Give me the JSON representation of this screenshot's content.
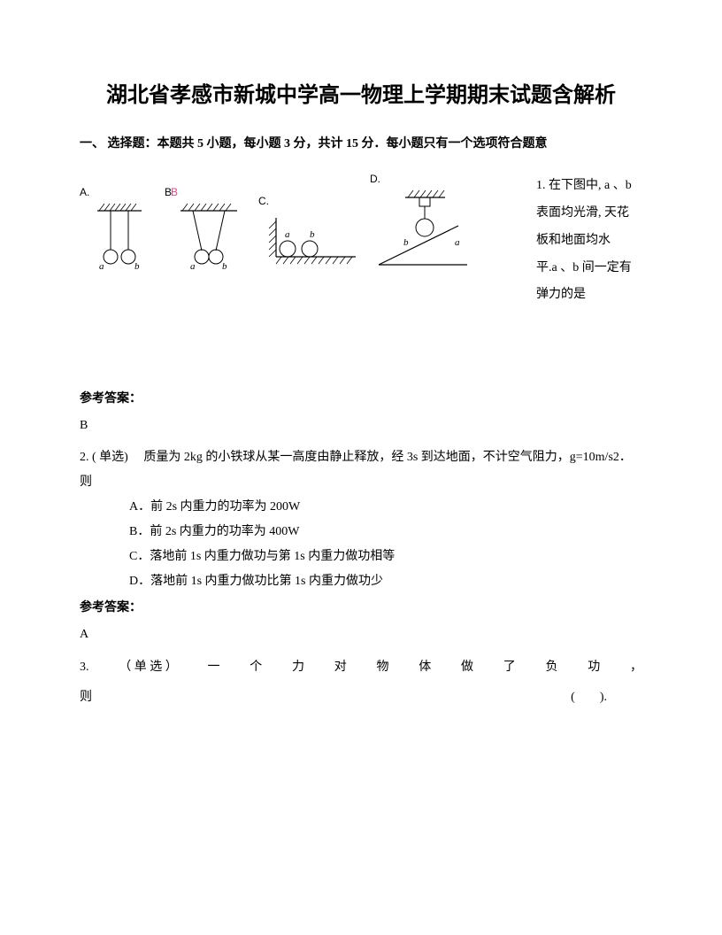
{
  "title": "湖北省孝感市新城中学高一物理上学期期末试题含解析",
  "section1": "一、 选择题：本题共 5 小题，每小题 3 分，共计 15 分．每小题只有一个选项符合题意",
  "q1": {
    "text_lines": [
      "1. 在下图中, a 、b",
      "表面均光滑, 天花",
      "板和地面均水",
      "平.a 、b 间一定有",
      "弹力的是"
    ],
    "labels": {
      "A": "A.",
      "B": "BB",
      "C": "C.",
      "D": "D."
    }
  },
  "answer_label": "参考答案：",
  "q1_answer": "B",
  "q2": {
    "stem": "2. ( 单选)　 质量为 2kg 的小铁球从某一高度由静止释放，经 3s 到达地面，不计空气阻力，g=10m/s2．则",
    "A": "A．前 2s 内重力的功率为 200W",
    "B": "B．前 2s 内重力的功率为 400W",
    "C": "C．落地前 1s 内重力做功与第 1s 内重力做功相等",
    "D": "D．落地前 1s 内重力做功比第 1s 内重力做功少",
    "answer": "A"
  },
  "q3": {
    "prefix": "3.",
    "tag": "（ 单 选 ）",
    "body_chars": [
      "一",
      "个",
      "力",
      "对",
      "物",
      "体",
      "做",
      "了",
      "负",
      "功",
      "，"
    ],
    "line2_left": "则",
    "line2_right": "(　　)."
  },
  "diagrams": {
    "stroke": "#000000",
    "hatch": "#000000",
    "label_b_color": "#d94a8c"
  }
}
